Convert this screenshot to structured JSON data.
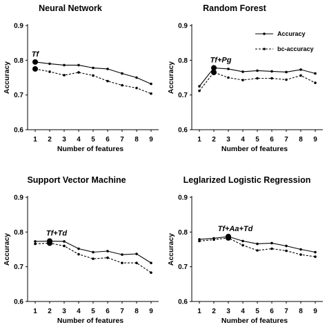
{
  "chart_data": [
    {
      "type": "line",
      "title": "Neural Network",
      "xlabel": "Number of features",
      "ylabel": "Accuracy",
      "x": [
        1,
        2,
        3,
        4,
        5,
        6,
        7,
        8,
        9
      ],
      "ylim": [
        0.6,
        0.9
      ],
      "yticks": [
        "0.6",
        "0.7",
        "0.8",
        "0.9"
      ],
      "series": [
        {
          "name": "Accuracy",
          "style": "solid",
          "values": [
            0.795,
            0.79,
            0.786,
            0.786,
            0.778,
            0.775,
            0.762,
            0.75,
            0.732
          ]
        },
        {
          "name": "bc-accuracy",
          "style": "dashed",
          "values": [
            0.775,
            0.767,
            0.757,
            0.765,
            0.756,
            0.74,
            0.728,
            0.72,
            0.704
          ]
        }
      ],
      "annotation": {
        "text": "Tf",
        "x": 1
      },
      "legend": "none"
    },
    {
      "type": "line",
      "title": "Random Forest",
      "xlabel": "Number of features",
      "ylabel": "Accuracy",
      "x": [
        1,
        2,
        3,
        4,
        5,
        6,
        7,
        8,
        9
      ],
      "ylim": [
        0.6,
        0.9
      ],
      "yticks": [
        "0.6",
        "0.7",
        "0.8",
        "0.9"
      ],
      "series": [
        {
          "name": "Accuracy",
          "style": "solid",
          "values": [
            0.725,
            0.778,
            0.775,
            0.767,
            0.77,
            0.768,
            0.766,
            0.773,
            0.762
          ]
        },
        {
          "name": "bc-accuracy",
          "style": "dashed",
          "values": [
            0.712,
            0.765,
            0.75,
            0.743,
            0.748,
            0.748,
            0.744,
            0.756,
            0.735
          ]
        }
      ],
      "annotation": {
        "text": "Tf+Pg",
        "x": 2
      },
      "legend": "top-right"
    },
    {
      "type": "line",
      "title": "Support Vector Machine",
      "xlabel": "Number of features",
      "ylabel": "Accuracy",
      "x": [
        1,
        2,
        3,
        4,
        5,
        6,
        7,
        8,
        9
      ],
      "ylim": [
        0.6,
        0.9
      ],
      "yticks": [
        "0.6",
        "0.7",
        "0.8",
        "0.9"
      ],
      "series": [
        {
          "name": "Accuracy",
          "style": "solid",
          "values": [
            0.773,
            0.774,
            0.773,
            0.752,
            0.742,
            0.745,
            0.735,
            0.737,
            0.711
          ]
        },
        {
          "name": "bc-accuracy",
          "style": "dashed",
          "values": [
            0.766,
            0.768,
            0.76,
            0.736,
            0.723,
            0.726,
            0.711,
            0.711,
            0.683
          ]
        }
      ],
      "annotation": {
        "text": "Tf+Td",
        "x": 2
      },
      "legend": "none"
    },
    {
      "type": "line",
      "title": "Leglarized Logistic Regression",
      "xlabel": "Number of features",
      "ylabel": "Accuracy",
      "x": [
        1,
        2,
        3,
        4,
        5,
        6,
        7,
        8,
        9
      ],
      "ylim": [
        0.6,
        0.9
      ],
      "yticks": [
        "0.6",
        "0.7",
        "0.8",
        "0.9"
      ],
      "series": [
        {
          "name": "Accuracy",
          "style": "solid",
          "values": [
            0.779,
            0.782,
            0.787,
            0.774,
            0.766,
            0.768,
            0.76,
            0.75,
            0.742
          ]
        },
        {
          "name": "bc-accuracy",
          "style": "dashed",
          "values": [
            0.774,
            0.778,
            0.783,
            0.762,
            0.747,
            0.752,
            0.746,
            0.735,
            0.729
          ]
        }
      ],
      "annotation": {
        "text": "Tf+Aa+Td",
        "x": 3
      },
      "legend": "none"
    }
  ],
  "colors": {
    "line": "#000000",
    "background": "#ffffff"
  }
}
